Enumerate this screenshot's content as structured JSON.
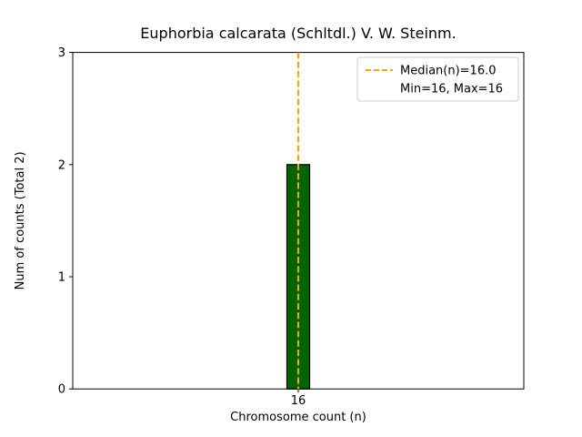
{
  "chart_data": {
    "type": "bar",
    "title": "Euphorbia calcarata (Schltdl.) V. W. Steinm.",
    "xlabel": "Chromosome count (n)",
    "ylabel": "Num of counts    (Total 2)",
    "categories": [
      "16"
    ],
    "values": [
      2
    ],
    "ylim": [
      0,
      3
    ],
    "yticks": [
      0,
      1,
      2,
      3
    ],
    "grid": false,
    "legend_position": "upper right",
    "legend": [
      "Median(n)=16.0",
      "Min=16, Max=16"
    ],
    "median_value": "16.0",
    "min_value": "16",
    "max_value": "16",
    "total_counts": 2,
    "colors": {
      "bar_fill": "#006400",
      "bar_edge": "#000000",
      "median_line": "#FFA500",
      "axis": "#000000",
      "legend_border": "#cccccc",
      "background": "#ffffff"
    }
  }
}
